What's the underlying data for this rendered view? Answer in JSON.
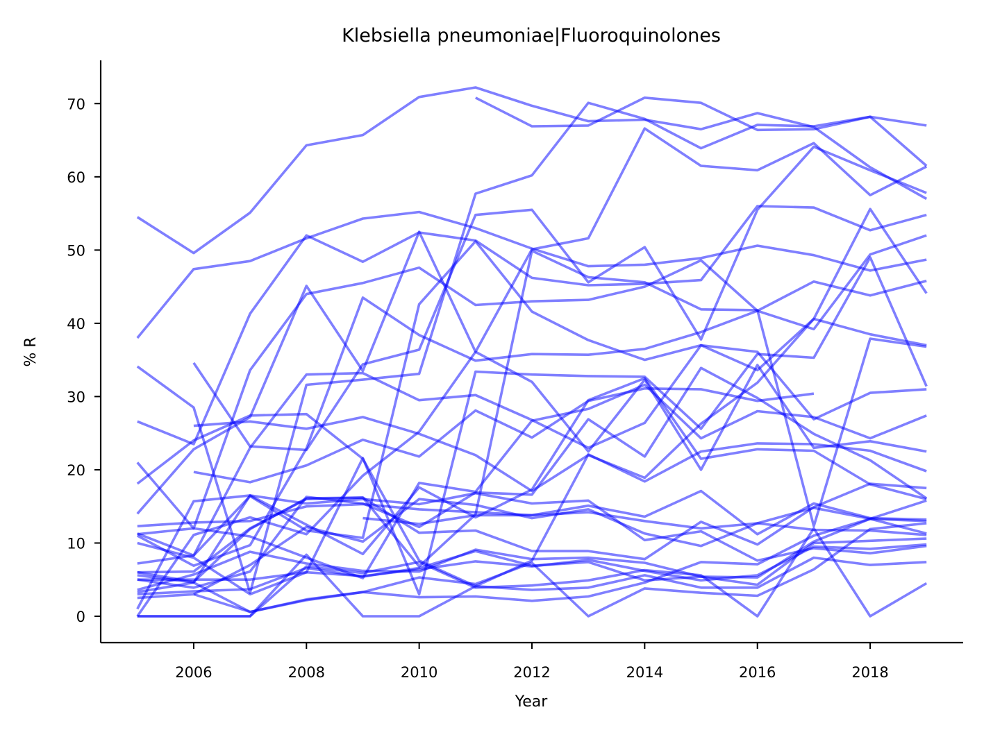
{
  "chart_data": {
    "type": "line",
    "title": "Klebsiella pneumoniae|Fluoroquinolones",
    "xlabel": "Year",
    "ylabel": "% R",
    "xlim": [
      2004.35,
      2019.65
    ],
    "ylim": [
      -3.6,
      75.9
    ],
    "xticks": [
      2006,
      2008,
      2010,
      2012,
      2014,
      2016,
      2018
    ],
    "yticks": [
      0,
      10,
      20,
      30,
      40,
      50,
      60,
      70
    ],
    "grid": false,
    "legend": "none",
    "line_color": "#0000ff",
    "line_opacity": 0.5,
    "x": [
      2005,
      2006,
      2007,
      2008,
      2009,
      2010,
      2011,
      2012,
      2013,
      2014,
      2015,
      2016,
      2017,
      2018,
      2019
    ],
    "series": [
      {
        "values": [
          54.5,
          49.6,
          55.1,
          64.3,
          65.7,
          70.9,
          72.2,
          69.7,
          67.6,
          67.8,
          66.5,
          68.7,
          66.8,
          61.3,
          57.0
        ]
      },
      {
        "values": [
          null,
          null,
          null,
          null,
          null,
          null,
          70.8,
          66.9,
          67.0,
          70.8,
          70.1,
          66.4,
          66.5,
          68.2,
          61.5
        ]
      },
      {
        "values": [
          38.0,
          47.4,
          48.5,
          51.6,
          54.3,
          55.2,
          53.0,
          50.2,
          47.8,
          48.0,
          48.9,
          50.6,
          49.3,
          47.2,
          48.7
        ]
      },
      {
        "values": [
          34.1,
          28.5,
          3.2,
          31.6,
          32.3,
          33.1,
          57.7,
          60.2,
          70.1,
          67.9,
          63.9,
          67.1,
          66.9,
          68.2,
          67.0
        ]
      },
      {
        "values": [
          26.6,
          23.5,
          41.3,
          52.0,
          48.4,
          52.4,
          51.3,
          46.2,
          45.2,
          45.4,
          45.9,
          56.0,
          55.8,
          52.7,
          54.8
        ]
      },
      {
        "values": [
          21.0,
          12.0,
          33.6,
          44.0,
          45.5,
          47.6,
          42.5,
          43.0,
          43.2,
          45.0,
          48.6,
          41.7,
          45.7,
          43.8,
          45.8
        ]
      },
      {
        "values": [
          18.1,
          24.0,
          27.4,
          27.6,
          21.5,
          7.6,
          4.1,
          7.6,
          22.1,
          18.4,
          22.5,
          23.6,
          23.5,
          22.6,
          19.8
        ]
      },
      {
        "values": [
          14.0,
          22.8,
          27.2,
          45.1,
          33.5,
          52.5,
          36.1,
          50.1,
          51.6,
          66.6,
          61.5,
          60.9,
          64.6,
          57.5,
          61.4
        ]
      },
      {
        "values": [
          12.3,
          12.8,
          13.0,
          15.0,
          15.3,
          14.6,
          14.2,
          13.8,
          15.1,
          13.6,
          17.1,
          11.2,
          15.4,
          13.4,
          13.2
        ]
      },
      {
        "values": [
          11.3,
          8.3,
          16.4,
          11.7,
          10.7,
          42.6,
          51.2,
          41.6,
          37.7,
          35.0,
          37.0,
          33.6,
          40.6,
          38.5,
          37.0
        ]
      },
      {
        "values": [
          11.0,
          6.9,
          9.7,
          22.9,
          43.5,
          38.4,
          34.9,
          35.8,
          35.7,
          36.5,
          38.8,
          41.7,
          39.2,
          49.4,
          52.0
        ]
      },
      {
        "values": [
          null,
          26.0,
          26.6,
          25.6,
          27.2,
          24.9,
          22.0,
          17.1,
          22.0,
          18.9,
          26.3,
          31.9,
          40.6,
          55.6,
          44.1
        ]
      },
      {
        "values": [
          null,
          34.6,
          23.2,
          22.7,
          34.4,
          36.4,
          54.8,
          55.5,
          45.6,
          50.4,
          37.8,
          55.5,
          64.1,
          60.9,
          57.8
        ]
      },
      {
        "values": [
          null,
          19.7,
          18.3,
          20.6,
          24.1,
          21.8,
          28.1,
          24.4,
          29.4,
          31.1,
          31.0,
          29.4,
          30.4,
          null,
          null
        ]
      },
      {
        "values": [
          7.2,
          8.3,
          23.0,
          33.0,
          33.2,
          29.5,
          30.2,
          26.8,
          23.0,
          26.4,
          37.0,
          36.1,
          26.9,
          30.5,
          31.0
        ]
      },
      {
        "values": [
          6.0,
          4.7,
          11.9,
          16.1,
          16.2,
          11.4,
          11.7,
          8.9,
          8.9,
          7.8,
          12.9,
          9.8,
          14.9,
          18.1,
          17.5
        ]
      },
      {
        "values": [
          5.6,
          4.6,
          0.6,
          2.3,
          3.3,
          2.6,
          2.7,
          2.1,
          2.7,
          4.6,
          7.4,
          7.1,
          11.0,
          13.3,
          13.0
        ]
      },
      {
        "values": [
          5.0,
          3.9,
          6.1,
          16.3,
          15.4,
          12.2,
          16.9,
          16.6,
          26.9,
          21.8,
          33.9,
          29.8,
          24.9,
          21.3,
          16.1
        ]
      },
      {
        "values": [
          3.6,
          5.7,
          8.8,
          7.2,
          6.2,
          6.1,
          9.1,
          7.8,
          8.0,
          7.3,
          5.4,
          5.3,
          10.2,
          13.3,
          15.8
        ]
      },
      {
        "values": [
          3.0,
          3.4,
          3.7,
          6.6,
          5.4,
          6.6,
          8.9,
          6.9,
          7.4,
          4.9,
          5.4,
          4.3,
          10.0,
          10.3,
          10.6
        ]
      },
      {
        "values": [
          1.0,
          15.7,
          16.5,
          15.4,
          16.0,
          15.3,
          16.8,
          15.4,
          15.8,
          10.4,
          11.6,
          7.6,
          9.3,
          8.6,
          9.6
        ]
      },
      {
        "values": [
          0.0,
          11.1,
          13.5,
          11.2,
          19.2,
          25.2,
          36.1,
          32.0,
          22.5,
          32.3,
          20.0,
          34.3,
          23.0,
          23.9,
          22.5
        ]
      },
      {
        "values": [
          0.0,
          0.0,
          0.0,
          8.4,
          0.0,
          0.0,
          4.1,
          3.6,
          3.9,
          5.6,
          3.9,
          3.9,
          8.0,
          7.0,
          7.4
        ]
      },
      {
        "values": [
          0.0,
          0.0,
          0.0,
          6.8,
          5.9,
          7.4,
          3.9,
          4.2,
          4.9,
          6.3,
          5.6,
          0.0,
          12.0,
          0.0,
          4.5
        ]
      },
      {
        "values": [
          2.5,
          3.0,
          0.6,
          2.2,
          3.3,
          5.3,
          4.4,
          7.3,
          0.0,
          3.8,
          3.2,
          2.8,
          6.4,
          11.9,
          12.7
        ]
      },
      {
        "values": [
          11.2,
          12.0,
          10.9,
          8.0,
          5.2,
          18.2,
          17.0,
          26.7,
          28.3,
          31.6,
          24.3,
          28.0,
          27.2,
          24.3,
          27.4
        ]
      },
      {
        "values": [
          3.3,
          4.6,
          16.5,
          12.5,
          8.5,
          17.6,
          13.5,
          17.3,
          29.5,
          32.5,
          21.5,
          22.8,
          22.6,
          18.0,
          16.0
        ]
      },
      {
        "values": [
          null,
          3.0,
          7.0,
          12.2,
          10.2,
          16.0,
          15.2,
          13.4,
          14.6,
          11.3,
          9.6,
          12.7,
          14.8,
          13.3,
          11.3
        ]
      },
      {
        "values": [
          null,
          null,
          null,
          null,
          13.4,
          12.6,
          13.8,
          13.8,
          14.2,
          13.0,
          12.0,
          12.7,
          11.8,
          11.7,
          11.1
        ]
      },
      {
        "values": [
          6.0,
          6.1,
          12.0,
          16.0,
          16.2,
          6.8,
          13.9,
          49.9,
          46.3,
          45.6,
          41.9,
          41.8,
          12.3,
          37.9,
          36.8
        ]
      },
      {
        "values": [
          10.0,
          8.0,
          3.0,
          6.0,
          21.6,
          3.0,
          33.4,
          33.0,
          32.8,
          32.7,
          25.6,
          35.8,
          35.3,
          49.0,
          31.4
        ]
      },
      {
        "values": [
          5.0,
          5.0,
          5.0,
          6.0,
          5.5,
          6.4,
          7.5,
          6.8,
          7.7,
          6.2,
          4.9,
          5.6,
          9.5,
          9.2,
          9.8
        ]
      }
    ]
  }
}
